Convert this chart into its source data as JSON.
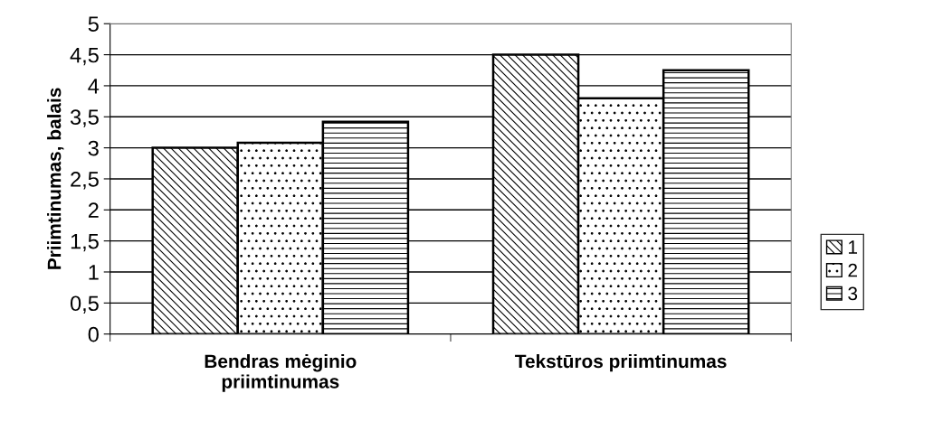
{
  "chart_data": {
    "type": "bar",
    "ylabel": "Priimtinumas, balais",
    "categories": [
      "Bendras mėginio\npriimtinumas",
      "Tekstūros priimtinumas"
    ],
    "series": [
      {
        "name": "1",
        "color": "#000000",
        "values": [
          3.0,
          4.5
        ]
      },
      {
        "name": "2",
        "color": "#000000",
        "values": [
          3.08,
          3.8
        ]
      },
      {
        "name": "3",
        "color": "#000000",
        "values": [
          3.42,
          4.25
        ]
      }
    ],
    "ylim": [
      0,
      5
    ],
    "yticks": [
      0,
      {
        "value": 0.5,
        "label": "0,5"
      },
      1,
      {
        "value": 1.5,
        "label": "1,5"
      },
      2,
      {
        "value": 2.5,
        "label": "2,5"
      },
      3,
      {
        "value": 3.5,
        "label": "3,5"
      },
      4,
      {
        "value": 4.5,
        "label": "4,5"
      },
      5
    ],
    "grid": "y",
    "legend": "right"
  }
}
